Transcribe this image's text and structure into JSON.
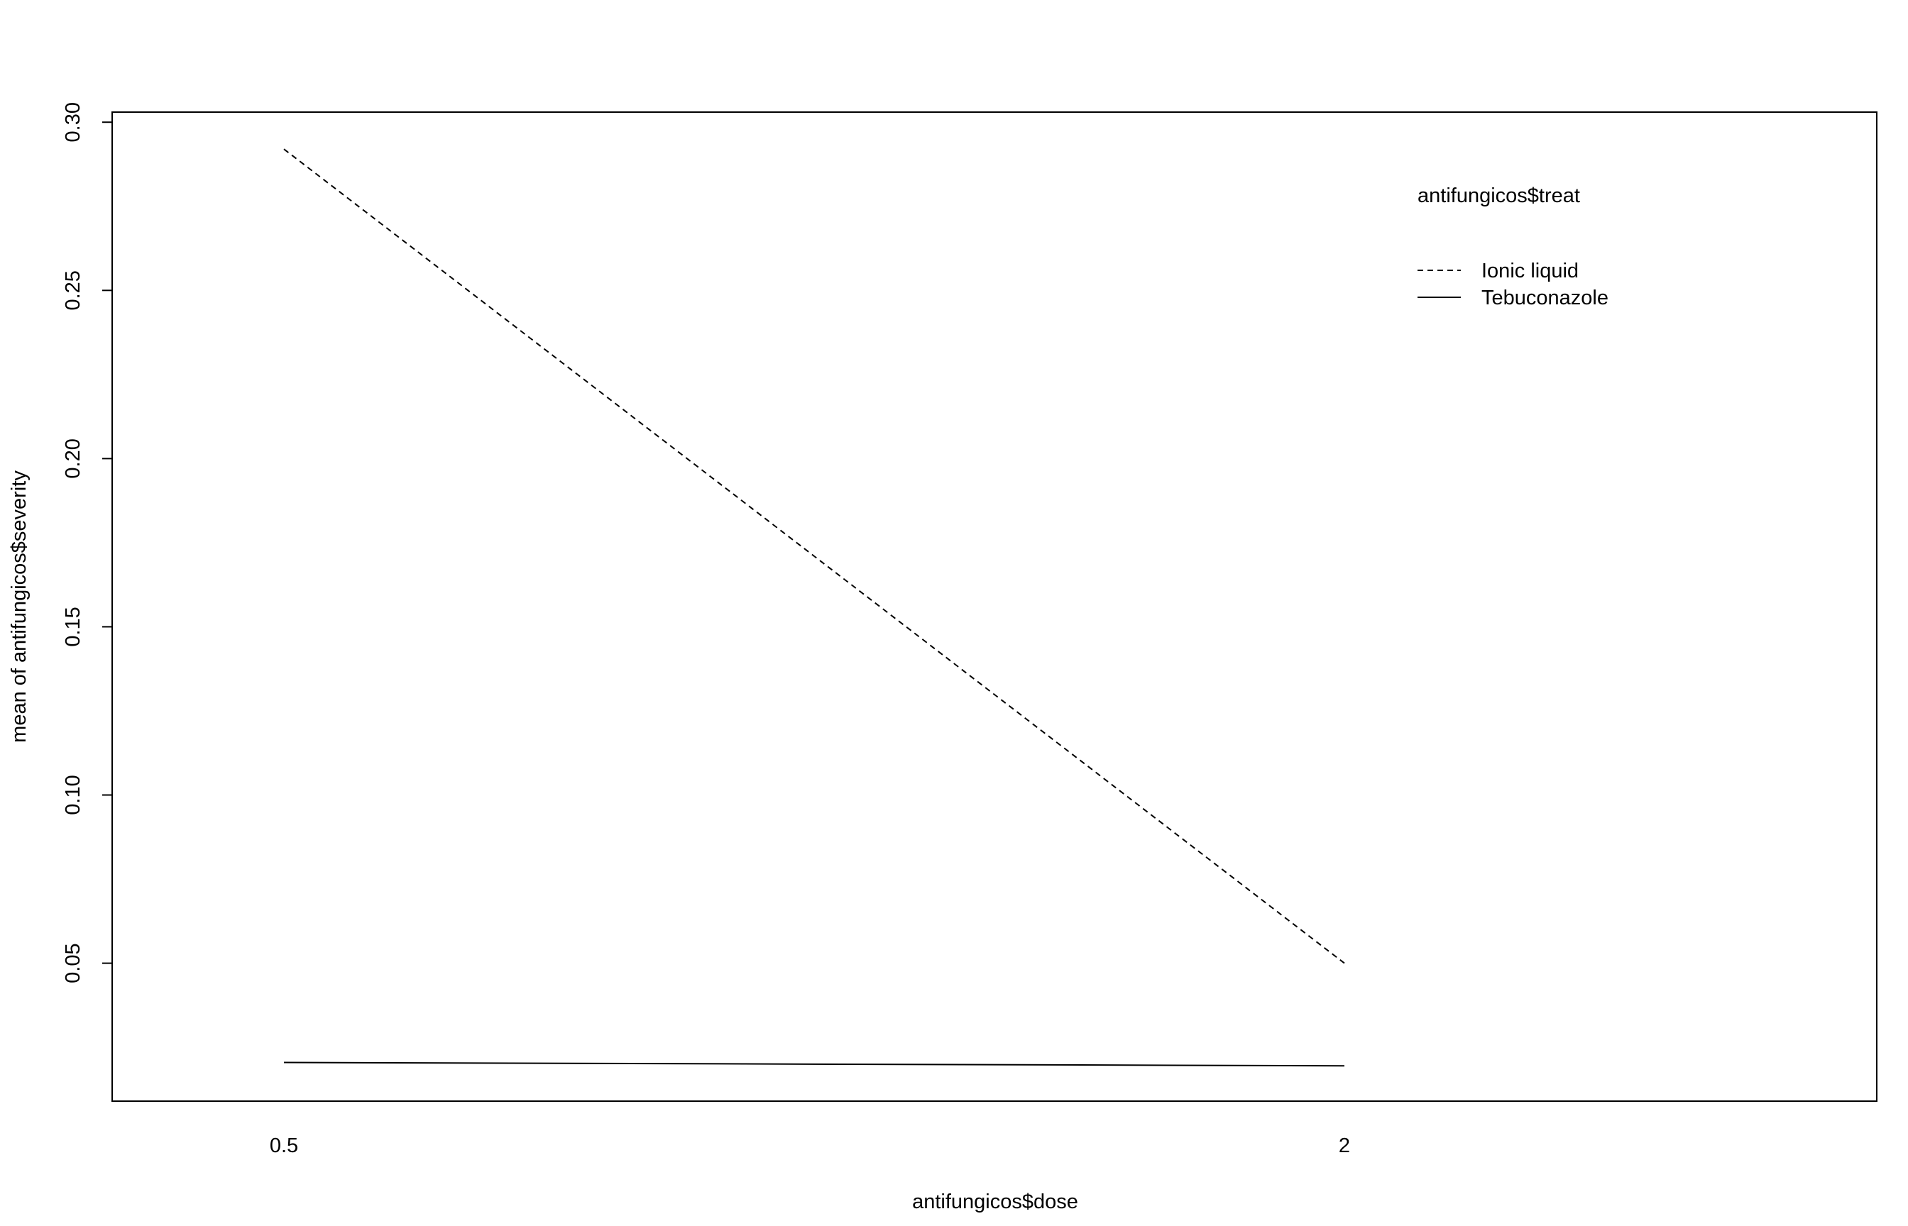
{
  "chart_data": {
    "type": "line",
    "title": "",
    "xlabel": "antifungicos$dose",
    "ylabel": "mean of  antifungicos$severity",
    "categories": [
      "0.5",
      "2"
    ],
    "x_ticks": [
      "0.5",
      "2"
    ],
    "y_ticks": [
      "0.05",
      "0.10",
      "0.15",
      "0.20",
      "0.25",
      "0.30"
    ],
    "ylim": [
      0.009,
      0.303
    ],
    "grid": false,
    "legend": {
      "title": "antifungicos$treat",
      "placement": "top-right"
    },
    "series": [
      {
        "name": "Ionic liquid",
        "line_style": "dashed",
        "color": "#000000",
        "values": [
          0.292,
          0.05
        ]
      },
      {
        "name": "Tebuconazole",
        "line_style": "solid",
        "color": "#000000",
        "values": [
          0.0205,
          0.0195
        ]
      }
    ]
  }
}
